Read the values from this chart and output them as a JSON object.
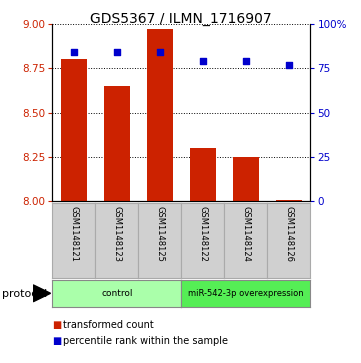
{
  "title": "GDS5367 / ILMN_1716907",
  "samples": [
    "GSM1148121",
    "GSM1148123",
    "GSM1148125",
    "GSM1148122",
    "GSM1148124",
    "GSM1148126"
  ],
  "transformed_counts": [
    8.8,
    8.65,
    8.97,
    8.3,
    8.25,
    8.01
  ],
  "percentile_ranks": [
    84,
    84,
    84,
    79,
    79,
    77
  ],
  "ylim_left": [
    8.0,
    9.0
  ],
  "ylim_right": [
    0,
    100
  ],
  "yticks_left": [
    8.0,
    8.25,
    8.5,
    8.75,
    9.0
  ],
  "yticks_right": [
    0,
    25,
    50,
    75,
    100
  ],
  "bar_color": "#cc2200",
  "scatter_color": "#0000cc",
  "bar_width": 0.6,
  "groups": [
    {
      "label": "control",
      "indices": [
        0,
        1,
        2
      ],
      "color": "#aaffaa"
    },
    {
      "label": "miR-542-3p overexpression",
      "indices": [
        3,
        4,
        5
      ],
      "color": "#55ee55"
    }
  ],
  "protocol_label": "protocol",
  "legend_bar_label": "transformed count",
  "legend_scatter_label": "percentile rank within the sample",
  "title_fontsize": 10,
  "tick_fontsize": 7.5,
  "sample_box_facecolor": "#d0d0d0",
  "sample_box_border": "#888888"
}
